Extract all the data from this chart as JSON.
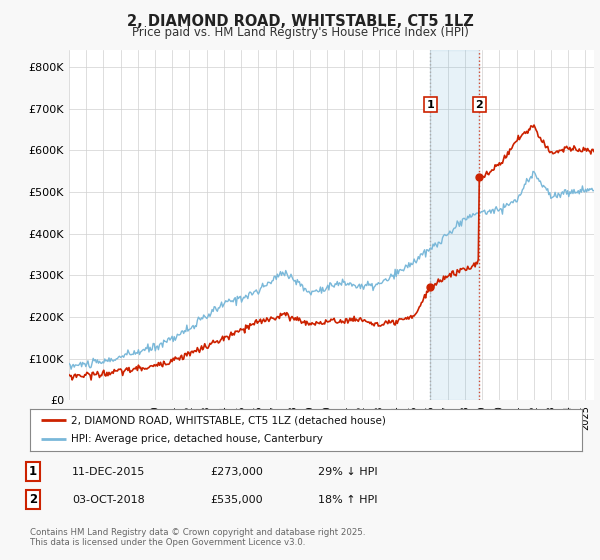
{
  "title": "2, DIAMOND ROAD, WHITSTABLE, CT5 1LZ",
  "subtitle": "Price paid vs. HM Land Registry's House Price Index (HPI)",
  "ylabel_ticks": [
    "£0",
    "£100K",
    "£200K",
    "£300K",
    "£400K",
    "£500K",
    "£600K",
    "£700K",
    "£800K"
  ],
  "ytick_vals": [
    0,
    100000,
    200000,
    300000,
    400000,
    500000,
    600000,
    700000,
    800000
  ],
  "ylim": [
    0,
    840000
  ],
  "xlim_start": 1995.0,
  "xlim_end": 2025.5,
  "hpi_color": "#7ab8d9",
  "price_color": "#cc2200",
  "sale1_date": "11-DEC-2015",
  "sale1_price": 273000,
  "sale1_pct": "29%",
  "sale1_dir": "↓",
  "sale1_year": 2016.0,
  "sale2_date": "03-OCT-2018",
  "sale2_price": 535000,
  "sale2_pct": "18%",
  "sale2_dir": "↑",
  "sale2_year": 2018.83,
  "legend_line1": "2, DIAMOND ROAD, WHITSTABLE, CT5 1LZ (detached house)",
  "legend_line2": "HPI: Average price, detached house, Canterbury",
  "footnote": "Contains HM Land Registry data © Crown copyright and database right 2025.\nThis data is licensed under the Open Government Licence v3.0.",
  "background_color": "#f8f8f8",
  "plot_bg_color": "#ffffff"
}
